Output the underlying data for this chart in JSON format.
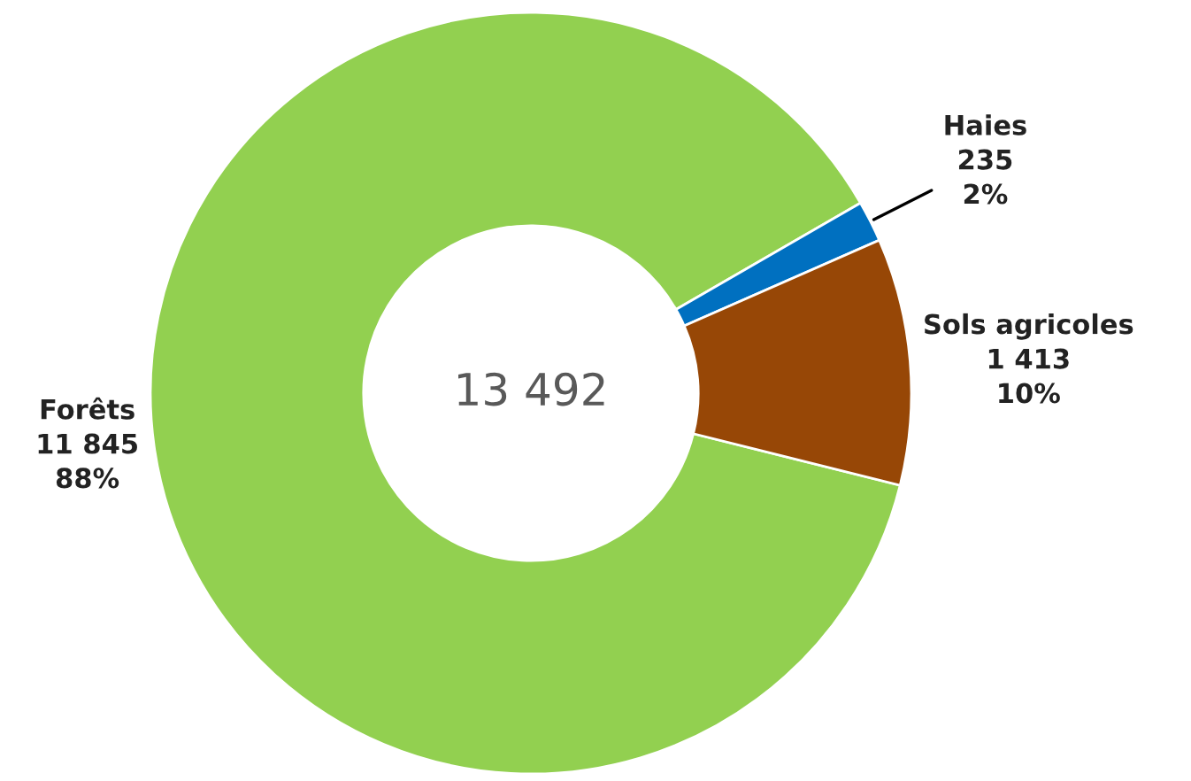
{
  "chart_data": {
    "type": "donut",
    "categories": [
      "Forêts",
      "Haies",
      "Sols agricoles"
    ],
    "values": [
      11845,
      235,
      1413
    ],
    "value_labels": [
      "11 845\n88%",
      "235\n2%",
      "1 413\n10%"
    ],
    "colors": [
      "#92d050",
      "#0070c0",
      "#974706"
    ],
    "annotations": [
      "13 492"
    ],
    "legend": false
  }
}
